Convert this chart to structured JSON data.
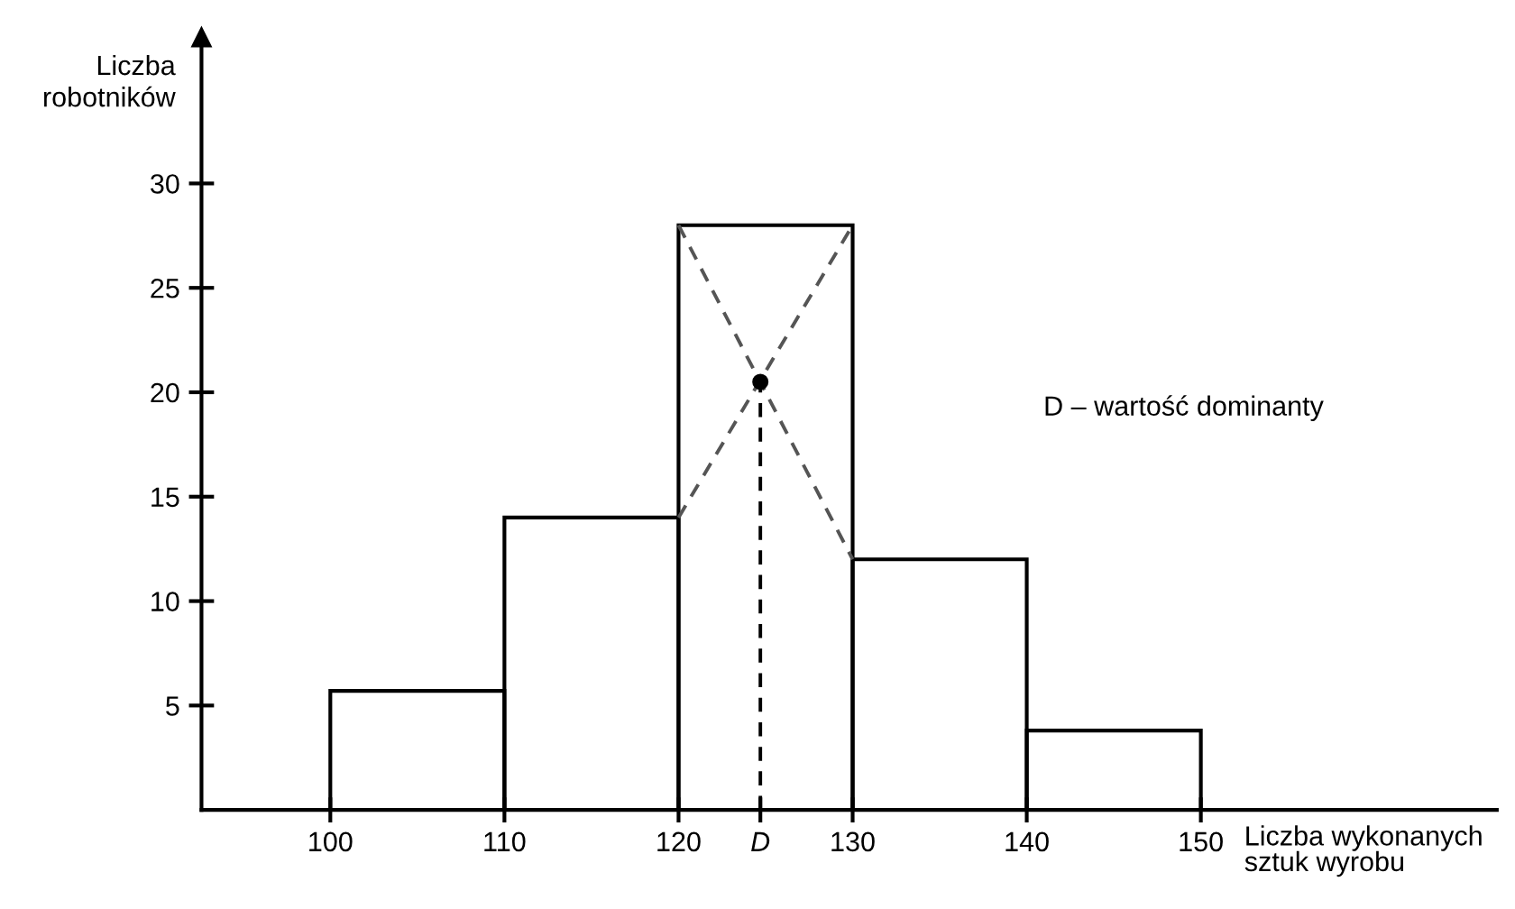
{
  "chart_data": {
    "type": "histogram",
    "xlabel": "Liczba wykonanych\nsztuk wyrobu",
    "ylabel": "Liczba\nrobotników",
    "bins": [
      100,
      110,
      120,
      130,
      140,
      150
    ],
    "values": [
      5.7,
      14,
      28,
      12,
      3.8
    ],
    "color": "#000000",
    "series": [
      {
        "type": "line",
        "x": [
          120,
          130
        ],
        "values": [
          28,
          12
        ],
        "color": "#555555",
        "line_style": "dashed"
      },
      {
        "type": "line",
        "x": [
          120,
          130
        ],
        "values": [
          14,
          28
        ],
        "color": "#555555",
        "line_style": "dashed"
      },
      {
        "type": "line",
        "x": [
          124.7,
          124.7
        ],
        "values": [
          0,
          20.5
        ],
        "color": "#000000",
        "line_style": "dashed"
      },
      {
        "type": "scatter",
        "x": [
          124.7
        ],
        "values": [
          20.5
        ],
        "color": "#000000",
        "marker": "circle"
      }
    ],
    "xlim": [
      92.6,
      167
    ],
    "ylim": [
      0,
      37
    ],
    "xticks": [
      100,
      110,
      120,
      {
        "value": 124.7,
        "label": "D"
      },
      130,
      140,
      150
    ],
    "yticks": [
      5,
      10,
      15,
      20,
      25,
      30
    ],
    "annotations": [
      "D – wartość dominanty"
    ]
  }
}
